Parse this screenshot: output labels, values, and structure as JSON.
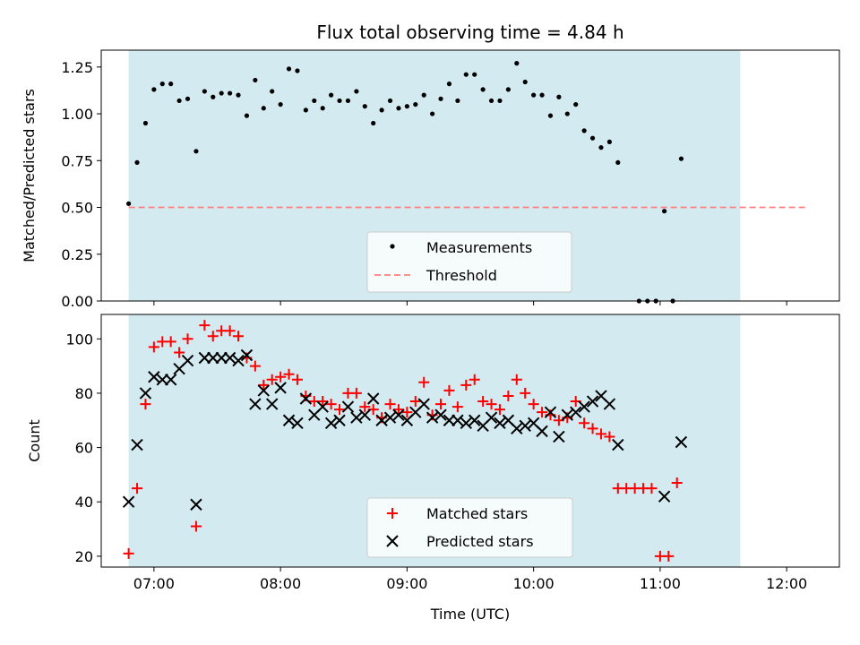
{
  "chart_data": [
    {
      "type": "scatter",
      "title": "Flux total observing time = 4.84 h",
      "xlabel": "",
      "ylabel": "Matched/Predicted stars",
      "xlim": [
        "06:35",
        "12:25"
      ],
      "ylim": [
        0,
        1.34
      ],
      "yticks": [
        "0.00",
        "0.25",
        "0.50",
        "0.75",
        "1.00",
        "1.25"
      ],
      "shaded_region": {
        "from": "06:48",
        "to": "11:38",
        "color": "#d3eaf1"
      },
      "threshold": {
        "name": "Threshold",
        "y": 0.5,
        "from": "06:48",
        "to": "12:09",
        "color": "#ff7f7f"
      },
      "series": [
        {
          "name": "Measurements",
          "marker": "dot",
          "color": "#000000",
          "points": [
            [
              "06:48",
              0.52
            ],
            [
              "06:52",
              0.74
            ],
            [
              "06:56",
              0.95
            ],
            [
              "07:00",
              1.13
            ],
            [
              "07:04",
              1.16
            ],
            [
              "07:08",
              1.16
            ],
            [
              "07:12",
              1.07
            ],
            [
              "07:16",
              1.08
            ],
            [
              "07:20",
              0.8
            ],
            [
              "07:24",
              1.12
            ],
            [
              "07:28",
              1.09
            ],
            [
              "07:32",
              1.11
            ],
            [
              "07:36",
              1.11
            ],
            [
              "07:40",
              1.1
            ],
            [
              "07:44",
              0.99
            ],
            [
              "07:48",
              1.18
            ],
            [
              "07:52",
              1.03
            ],
            [
              "07:56",
              1.12
            ],
            [
              "08:00",
              1.05
            ],
            [
              "08:04",
              1.24
            ],
            [
              "08:08",
              1.23
            ],
            [
              "08:12",
              1.02
            ],
            [
              "08:16",
              1.07
            ],
            [
              "08:20",
              1.03
            ],
            [
              "08:24",
              1.1
            ],
            [
              "08:28",
              1.07
            ],
            [
              "08:32",
              1.07
            ],
            [
              "08:36",
              1.12
            ],
            [
              "08:40",
              1.04
            ],
            [
              "08:44",
              0.95
            ],
            [
              "08:48",
              1.02
            ],
            [
              "08:52",
              1.07
            ],
            [
              "08:56",
              1.03
            ],
            [
              "09:00",
              1.04
            ],
            [
              "09:04",
              1.05
            ],
            [
              "09:08",
              1.1
            ],
            [
              "09:12",
              1.0
            ],
            [
              "09:16",
              1.08
            ],
            [
              "09:20",
              1.16
            ],
            [
              "09:24",
              1.07
            ],
            [
              "09:28",
              1.21
            ],
            [
              "09:32",
              1.21
            ],
            [
              "09:36",
              1.13
            ],
            [
              "09:40",
              1.07
            ],
            [
              "09:44",
              1.07
            ],
            [
              "09:48",
              1.13
            ],
            [
              "09:52",
              1.27
            ],
            [
              "09:56",
              1.17
            ],
            [
              "10:00",
              1.1
            ],
            [
              "10:04",
              1.1
            ],
            [
              "10:08",
              0.99
            ],
            [
              "10:12",
              1.09
            ],
            [
              "10:16",
              1.0
            ],
            [
              "10:20",
              1.05
            ],
            [
              "10:24",
              0.91
            ],
            [
              "10:28",
              0.87
            ],
            [
              "10:32",
              0.82
            ],
            [
              "10:36",
              0.85
            ],
            [
              "10:40",
              0.74
            ],
            [
              "10:50",
              0.0
            ],
            [
              "10:54",
              0.0
            ],
            [
              "10:58",
              0.0
            ],
            [
              "11:02",
              0.48
            ],
            [
              "11:06",
              0.0
            ],
            [
              "11:10",
              0.76
            ]
          ]
        }
      ],
      "legend": "lower-center"
    },
    {
      "type": "scatter",
      "title": "",
      "xlabel": "Time (UTC)",
      "ylabel": "Count",
      "xlim": [
        "06:35",
        "12:25"
      ],
      "ylim": [
        16,
        109
      ],
      "yticks": [
        "20",
        "40",
        "60",
        "80",
        "100"
      ],
      "xticks": [
        "07:00",
        "08:00",
        "09:00",
        "10:00",
        "11:00",
        "12:00"
      ],
      "shaded_region": {
        "from": "06:48",
        "to": "11:38",
        "color": "#d3eaf1"
      },
      "series": [
        {
          "name": "Matched stars",
          "marker": "plus",
          "color": "#ff0000",
          "points": [
            [
              "06:48",
              21
            ],
            [
              "06:52",
              45
            ],
            [
              "06:56",
              76
            ],
            [
              "07:00",
              97
            ],
            [
              "07:04",
              99
            ],
            [
              "07:08",
              99
            ],
            [
              "07:12",
              95
            ],
            [
              "07:16",
              100
            ],
            [
              "07:20",
              31
            ],
            [
              "07:24",
              105
            ],
            [
              "07:28",
              101
            ],
            [
              "07:32",
              103
            ],
            [
              "07:36",
              103
            ],
            [
              "07:40",
              101
            ],
            [
              "07:44",
              93
            ],
            [
              "07:48",
              90
            ],
            [
              "07:52",
              83
            ],
            [
              "07:56",
              85
            ],
            [
              "08:00",
              86
            ],
            [
              "08:04",
              87
            ],
            [
              "08:08",
              85
            ],
            [
              "08:12",
              79
            ],
            [
              "08:16",
              77
            ],
            [
              "08:20",
              77
            ],
            [
              "08:24",
              76
            ],
            [
              "08:28",
              74
            ],
            [
              "08:32",
              80
            ],
            [
              "08:36",
              80
            ],
            [
              "08:40",
              75
            ],
            [
              "08:44",
              74
            ],
            [
              "08:48",
              71
            ],
            [
              "08:52",
              76
            ],
            [
              "08:56",
              74
            ],
            [
              "09:00",
              73
            ],
            [
              "09:04",
              77
            ],
            [
              "09:08",
              84
            ],
            [
              "09:12",
              72
            ],
            [
              "09:16",
              76
            ],
            [
              "09:20",
              81
            ],
            [
              "09:24",
              75
            ],
            [
              "09:28",
              83
            ],
            [
              "09:32",
              85
            ],
            [
              "09:36",
              77
            ],
            [
              "09:40",
              76
            ],
            [
              "09:44",
              74
            ],
            [
              "09:48",
              79
            ],
            [
              "09:52",
              85
            ],
            [
              "09:56",
              80
            ],
            [
              "10:00",
              76
            ],
            [
              "10:04",
              73
            ],
            [
              "10:08",
              72
            ],
            [
              "10:12",
              70
            ],
            [
              "10:16",
              71
            ],
            [
              "10:20",
              77
            ],
            [
              "10:24",
              69
            ],
            [
              "10:28",
              67
            ],
            [
              "10:32",
              65
            ],
            [
              "10:36",
              64
            ],
            [
              "10:40",
              45
            ],
            [
              "10:44",
              45
            ],
            [
              "10:48",
              45
            ],
            [
              "10:52",
              45
            ],
            [
              "10:56",
              45
            ],
            [
              "11:00",
              20
            ],
            [
              "11:04",
              20
            ],
            [
              "11:08",
              47
            ]
          ]
        },
        {
          "name": "Predicted stars",
          "marker": "x",
          "color": "#000000",
          "points": [
            [
              "06:48",
              40
            ],
            [
              "06:52",
              61
            ],
            [
              "06:56",
              80
            ],
            [
              "07:00",
              86
            ],
            [
              "07:04",
              85
            ],
            [
              "07:08",
              85
            ],
            [
              "07:12",
              89
            ],
            [
              "07:16",
              92
            ],
            [
              "07:20",
              39
            ],
            [
              "07:24",
              93
            ],
            [
              "07:28",
              93
            ],
            [
              "07:32",
              93
            ],
            [
              "07:36",
              93
            ],
            [
              "07:40",
              92
            ],
            [
              "07:44",
              94
            ],
            [
              "07:48",
              76
            ],
            [
              "07:52",
              81
            ],
            [
              "07:56",
              76
            ],
            [
              "08:00",
              82
            ],
            [
              "08:04",
              70
            ],
            [
              "08:08",
              69
            ],
            [
              "08:12",
              78
            ],
            [
              "08:16",
              72
            ],
            [
              "08:20",
              75
            ],
            [
              "08:24",
              69
            ],
            [
              "08:28",
              70
            ],
            [
              "08:32",
              75
            ],
            [
              "08:36",
              71
            ],
            [
              "08:40",
              72
            ],
            [
              "08:44",
              78
            ],
            [
              "08:48",
              70
            ],
            [
              "08:52",
              71
            ],
            [
              "08:56",
              72
            ],
            [
              "09:00",
              70
            ],
            [
              "09:04",
              73
            ],
            [
              "09:08",
              76
            ],
            [
              "09:12",
              71
            ],
            [
              "09:16",
              72
            ],
            [
              "09:20",
              70
            ],
            [
              "09:24",
              70
            ],
            [
              "09:28",
              69
            ],
            [
              "09:32",
              70
            ],
            [
              "09:36",
              68
            ],
            [
              "09:40",
              71
            ],
            [
              "09:44",
              69
            ],
            [
              "09:48",
              70
            ],
            [
              "09:52",
              67
            ],
            [
              "09:56",
              68
            ],
            [
              "10:00",
              69
            ],
            [
              "10:04",
              66
            ],
            [
              "10:08",
              73
            ],
            [
              "10:12",
              64
            ],
            [
              "10:16",
              72
            ],
            [
              "10:20",
              73
            ],
            [
              "10:24",
              75
            ],
            [
              "10:28",
              77
            ],
            [
              "10:32",
              79
            ],
            [
              "10:36",
              76
            ],
            [
              "10:40",
              61
            ],
            [
              "11:02",
              42
            ],
            [
              "11:10",
              62
            ]
          ]
        }
      ],
      "legend": "lower-center"
    }
  ]
}
